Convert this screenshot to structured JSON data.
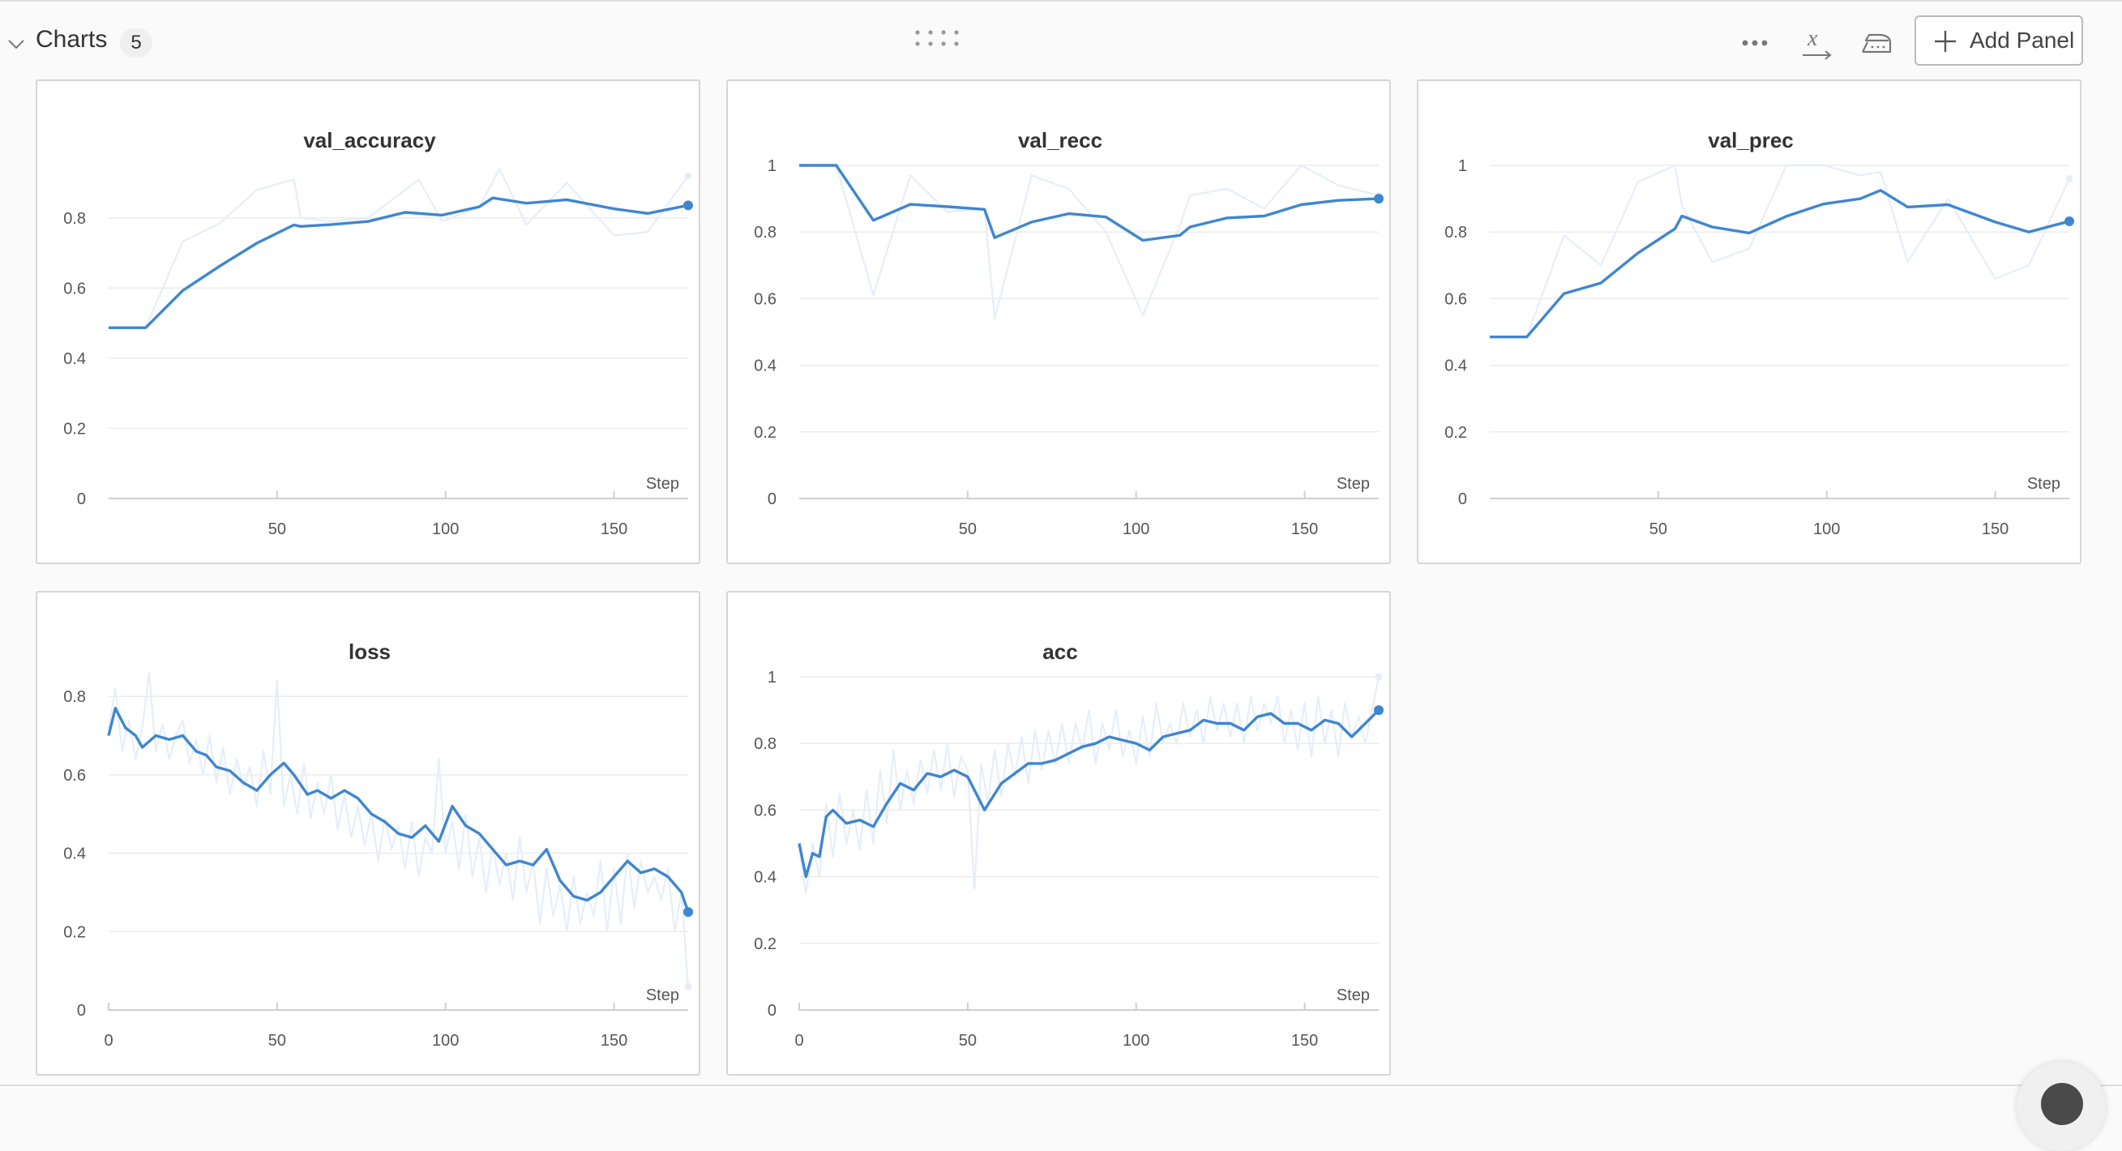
{
  "section": {
    "title": "Charts",
    "count": "5",
    "add_panel_label": "Add Panel"
  },
  "icons": {
    "collapse": "chevron-down-icon",
    "drag": "drag-handle-icon",
    "more": "more-horizontal-icon",
    "x_axis": "x-axis-function-icon",
    "smoothing": "iron-smoothing-icon",
    "add": "plus-icon"
  },
  "colors": {
    "line": "#3f86d0",
    "raw": "#e6eef8",
    "grid": "#ececec",
    "axis": "#cfcfcf"
  },
  "chart_data": [
    {
      "type": "line",
      "title": "val_accuracy",
      "xlabel": "Step",
      "ylabel": "",
      "xlim": [
        0,
        172
      ],
      "ylim": [
        0,
        0.95
      ],
      "xticks": [
        50,
        100,
        150
      ],
      "yticks": [
        0,
        0.2,
        0.4,
        0.6,
        0.8
      ],
      "ytick_labels": [
        "0",
        "0.2",
        "0.4",
        "0.6",
        "0.8"
      ],
      "show_x0": false,
      "series": [
        {
          "role": "smoothed",
          "x": [
            0,
            11,
            22,
            33,
            44,
            55,
            57,
            66,
            77,
            88,
            99,
            110,
            114,
            124,
            136,
            150,
            160,
            172
          ],
          "y": [
            0.487,
            0.487,
            0.593,
            0.663,
            0.728,
            0.78,
            0.776,
            0.781,
            0.79,
            0.816,
            0.808,
            0.832,
            0.857,
            0.842,
            0.852,
            0.826,
            0.813,
            0.836
          ]
        },
        {
          "role": "raw",
          "x": [
            0,
            11,
            22,
            33,
            44,
            55,
            57,
            66,
            77,
            88,
            92,
            99,
            110,
            116,
            124,
            136,
            150,
            160,
            172
          ],
          "y": [
            0.487,
            0.487,
            0.733,
            0.785,
            0.88,
            0.91,
            0.8,
            0.79,
            0.8,
            0.88,
            0.91,
            0.79,
            0.83,
            0.94,
            0.78,
            0.9,
            0.75,
            0.76,
            0.92
          ]
        }
      ]
    },
    {
      "type": "line",
      "title": "val_recc",
      "xlabel": "Step",
      "ylabel": "",
      "xlim": [
        0,
        172
      ],
      "ylim": [
        0,
        1
      ],
      "xticks": [
        50,
        100,
        150
      ],
      "yticks": [
        0,
        0.2,
        0.4,
        0.6,
        0.8,
        1
      ],
      "ytick_labels": [
        "0",
        "0.2",
        "0.4",
        "0.6",
        "0.8",
        "1"
      ],
      "show_x0": false,
      "series": [
        {
          "role": "smoothed",
          "x": [
            0,
            11,
            22,
            33,
            44,
            55,
            58,
            69,
            80,
            91,
            102,
            113,
            116,
            127,
            138,
            149,
            160,
            172
          ],
          "y": [
            1.0,
            1.0,
            0.835,
            0.883,
            0.876,
            0.868,
            0.783,
            0.83,
            0.855,
            0.845,
            0.775,
            0.79,
            0.815,
            0.842,
            0.848,
            0.882,
            0.895,
            0.9
          ]
        },
        {
          "role": "raw",
          "x": [
            0,
            11,
            22,
            33,
            44,
            55,
            58,
            69,
            80,
            91,
            102,
            113,
            116,
            127,
            138,
            149,
            160,
            172
          ],
          "y": [
            1.0,
            1.0,
            0.61,
            0.97,
            0.86,
            0.87,
            0.54,
            0.97,
            0.93,
            0.8,
            0.55,
            0.82,
            0.91,
            0.93,
            0.87,
            1.0,
            0.94,
            0.91
          ]
        }
      ]
    },
    {
      "type": "line",
      "title": "val_prec",
      "xlabel": "Step",
      "ylabel": "",
      "xlim": [
        0,
        172
      ],
      "ylim": [
        0,
        1
      ],
      "xticks": [
        50,
        100,
        150
      ],
      "yticks": [
        0,
        0.2,
        0.4,
        0.6,
        0.8,
        1
      ],
      "ytick_labels": [
        "0",
        "0.2",
        "0.4",
        "0.6",
        "0.8",
        "1"
      ],
      "show_x0": false,
      "series": [
        {
          "role": "smoothed",
          "x": [
            0,
            11,
            22,
            33,
            44,
            55,
            57,
            66,
            77,
            88,
            99,
            110,
            116,
            124,
            136,
            150,
            160,
            172
          ],
          "y": [
            0.485,
            0.485,
            0.615,
            0.647,
            0.737,
            0.81,
            0.848,
            0.815,
            0.797,
            0.847,
            0.884,
            0.9,
            0.925,
            0.875,
            0.882,
            0.83,
            0.8,
            0.832
          ]
        },
        {
          "role": "raw",
          "x": [
            0,
            11,
            22,
            33,
            44,
            55,
            57,
            66,
            77,
            88,
            99,
            110,
            116,
            124,
            136,
            150,
            160,
            172
          ],
          "y": [
            0.485,
            0.485,
            0.79,
            0.7,
            0.95,
            1.0,
            0.88,
            0.71,
            0.75,
            1.0,
            1.0,
            0.97,
            0.98,
            0.71,
            0.9,
            0.66,
            0.7,
            0.96
          ]
        }
      ]
    },
    {
      "type": "line",
      "title": "loss",
      "xlabel": "Step",
      "ylabel": "",
      "xlim": [
        0,
        172
      ],
      "ylim": [
        0,
        0.85
      ],
      "xticks": [
        0,
        50,
        100,
        150
      ],
      "yticks": [
        0,
        0.2,
        0.4,
        0.6,
        0.8
      ],
      "ytick_labels": [
        "0",
        "0.2",
        "0.4",
        "0.6",
        "0.8"
      ],
      "show_x0": true,
      "series": [
        {
          "role": "smoothed",
          "x": [
            0,
            2,
            5,
            8,
            10,
            14,
            18,
            22,
            26,
            29,
            32,
            36,
            40,
            44,
            48,
            52,
            55,
            59,
            62,
            66,
            70,
            74,
            78,
            82,
            86,
            90,
            94,
            98,
            102,
            106,
            110,
            114,
            118,
            122,
            126,
            130,
            134,
            138,
            142,
            146,
            150,
            154,
            158,
            162,
            166,
            170,
            172
          ],
          "y": [
            0.7,
            0.77,
            0.72,
            0.7,
            0.67,
            0.7,
            0.69,
            0.7,
            0.66,
            0.65,
            0.62,
            0.61,
            0.58,
            0.56,
            0.6,
            0.63,
            0.6,
            0.55,
            0.56,
            0.54,
            0.56,
            0.54,
            0.5,
            0.48,
            0.45,
            0.44,
            0.47,
            0.43,
            0.52,
            0.47,
            0.45,
            0.41,
            0.37,
            0.38,
            0.37,
            0.41,
            0.33,
            0.29,
            0.28,
            0.3,
            0.34,
            0.38,
            0.35,
            0.36,
            0.34,
            0.3,
            0.25
          ]
        },
        {
          "role": "raw",
          "x": [
            0,
            2,
            4,
            6,
            8,
            10,
            12,
            14,
            16,
            18,
            20,
            22,
            24,
            26,
            28,
            30,
            32,
            34,
            36,
            38,
            40,
            42,
            44,
            46,
            48,
            50,
            52,
            54,
            56,
            58,
            60,
            62,
            64,
            66,
            68,
            70,
            72,
            74,
            76,
            78,
            80,
            82,
            84,
            86,
            88,
            90,
            92,
            94,
            96,
            98,
            100,
            102,
            104,
            106,
            108,
            110,
            112,
            114,
            116,
            118,
            120,
            122,
            124,
            126,
            128,
            130,
            132,
            134,
            136,
            138,
            140,
            142,
            144,
            146,
            148,
            150,
            152,
            154,
            156,
            158,
            160,
            162,
            164,
            166,
            168,
            170,
            172
          ],
          "y": [
            0.72,
            0.82,
            0.66,
            0.74,
            0.64,
            0.72,
            0.86,
            0.66,
            0.73,
            0.64,
            0.7,
            0.74,
            0.63,
            0.69,
            0.6,
            0.7,
            0.58,
            0.67,
            0.55,
            0.64,
            0.57,
            0.62,
            0.52,
            0.66,
            0.55,
            0.84,
            0.52,
            0.6,
            0.5,
            0.63,
            0.49,
            0.58,
            0.5,
            0.6,
            0.46,
            0.55,
            0.44,
            0.52,
            0.42,
            0.5,
            0.38,
            0.49,
            0.41,
            0.47,
            0.36,
            0.48,
            0.34,
            0.44,
            0.4,
            0.64,
            0.4,
            0.48,
            0.36,
            0.5,
            0.34,
            0.44,
            0.3,
            0.42,
            0.32,
            0.4,
            0.28,
            0.44,
            0.3,
            0.38,
            0.22,
            0.36,
            0.24,
            0.32,
            0.2,
            0.34,
            0.22,
            0.3,
            0.24,
            0.38,
            0.2,
            0.36,
            0.22,
            0.4,
            0.26,
            0.38,
            0.3,
            0.34,
            0.28,
            0.36,
            0.2,
            0.3,
            0.06
          ]
        }
      ]
    },
    {
      "type": "line",
      "title": "acc",
      "xlabel": "Step",
      "ylabel": "",
      "xlim": [
        0,
        172
      ],
      "ylim": [
        0,
        1
      ],
      "xticks": [
        0,
        50,
        100,
        150
      ],
      "yticks": [
        0,
        0.2,
        0.4,
        0.6,
        0.8,
        1
      ],
      "ytick_labels": [
        "0",
        "0.2",
        "0.4",
        "0.6",
        "0.8",
        "1"
      ],
      "show_x0": true,
      "series": [
        {
          "role": "smoothed",
          "x": [
            0,
            2,
            4,
            6,
            8,
            10,
            14,
            18,
            22,
            26,
            30,
            34,
            38,
            42,
            46,
            50,
            52,
            55,
            60,
            64,
            68,
            72,
            76,
            80,
            84,
            88,
            92,
            96,
            100,
            104,
            108,
            112,
            116,
            120,
            124,
            128,
            132,
            136,
            140,
            144,
            148,
            152,
            156,
            160,
            164,
            168,
            172
          ],
          "y": [
            0.5,
            0.4,
            0.47,
            0.46,
            0.58,
            0.6,
            0.56,
            0.57,
            0.55,
            0.62,
            0.68,
            0.66,
            0.71,
            0.7,
            0.72,
            0.7,
            0.66,
            0.6,
            0.68,
            0.71,
            0.74,
            0.74,
            0.75,
            0.77,
            0.79,
            0.8,
            0.82,
            0.81,
            0.8,
            0.78,
            0.82,
            0.83,
            0.84,
            0.87,
            0.86,
            0.86,
            0.84,
            0.88,
            0.89,
            0.86,
            0.86,
            0.84,
            0.87,
            0.86,
            0.82,
            0.86,
            0.9
          ]
        },
        {
          "role": "raw",
          "x": [
            0,
            2,
            4,
            6,
            8,
            10,
            12,
            14,
            16,
            18,
            20,
            22,
            24,
            26,
            28,
            30,
            32,
            34,
            36,
            38,
            40,
            42,
            44,
            46,
            48,
            50,
            52,
            54,
            56,
            58,
            60,
            62,
            64,
            66,
            68,
            70,
            72,
            74,
            76,
            78,
            80,
            82,
            84,
            86,
            88,
            90,
            92,
            94,
            96,
            98,
            100,
            102,
            104,
            106,
            108,
            110,
            112,
            114,
            116,
            118,
            120,
            122,
            124,
            126,
            128,
            130,
            132,
            134,
            136,
            138,
            140,
            142,
            144,
            146,
            148,
            150,
            152,
            154,
            156,
            158,
            160,
            162,
            164,
            166,
            168,
            170,
            172
          ],
          "y": [
            0.48,
            0.35,
            0.5,
            0.4,
            0.62,
            0.46,
            0.65,
            0.5,
            0.6,
            0.48,
            0.66,
            0.5,
            0.72,
            0.56,
            0.78,
            0.6,
            0.72,
            0.62,
            0.75,
            0.65,
            0.78,
            0.66,
            0.8,
            0.64,
            0.76,
            0.72,
            0.36,
            0.74,
            0.62,
            0.78,
            0.64,
            0.8,
            0.7,
            0.82,
            0.68,
            0.84,
            0.72,
            0.84,
            0.74,
            0.86,
            0.74,
            0.86,
            0.78,
            0.9,
            0.74,
            0.86,
            0.78,
            0.9,
            0.76,
            0.84,
            0.74,
            0.88,
            0.76,
            0.92,
            0.8,
            0.86,
            0.8,
            0.92,
            0.82,
            0.9,
            0.8,
            0.94,
            0.84,
            0.92,
            0.82,
            0.92,
            0.8,
            0.94,
            0.84,
            0.92,
            0.86,
            0.94,
            0.8,
            0.9,
            0.78,
            0.92,
            0.76,
            0.94,
            0.8,
            0.9,
            0.76,
            0.92,
            0.82,
            0.88,
            0.8,
            0.9,
            1.0
          ]
        }
      ]
    }
  ]
}
